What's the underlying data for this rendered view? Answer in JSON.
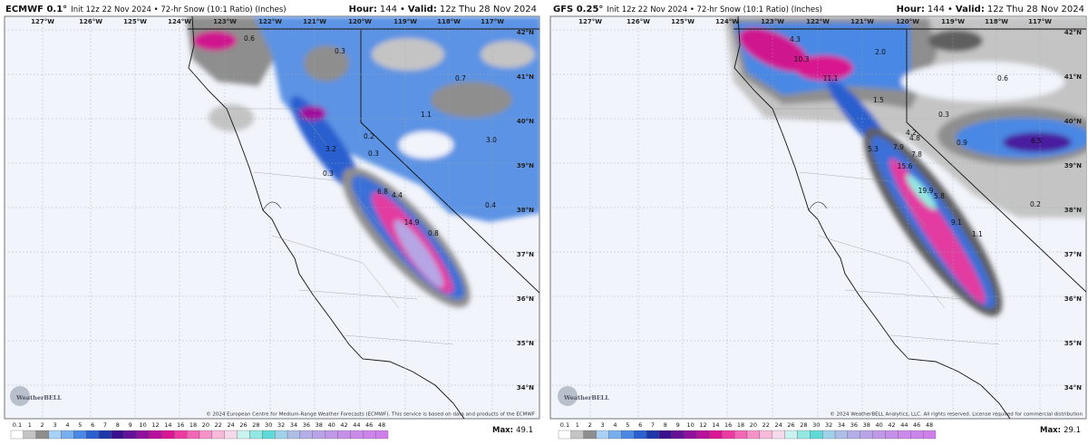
{
  "panels": [
    {
      "model": "ECMWF 0.1°",
      "init": "Init 12z 22 Nov 2024 • 72-hr Snow (10:1 Ratio) (Inches)",
      "hour_label": "Hour:",
      "hour": "144",
      "sep": "•",
      "valid_label": "Valid:",
      "valid": "12z Thu 28 Nov 2024",
      "lon_labels": [
        "127°W",
        "126°W",
        "125°W",
        "124°W",
        "123°W",
        "122°W",
        "121°W",
        "120°W",
        "119°W",
        "118°W",
        "117°W"
      ],
      "lat_labels": [
        "42°N",
        "41°N",
        "40°N",
        "39°N",
        "38°N",
        "37°N",
        "36°N",
        "35°N",
        "34°N"
      ],
      "point_labels": [
        "0.6",
        "0.3",
        "0.7",
        "1.1",
        "3.2",
        "0.2",
        "0.3",
        "0.3",
        "3.0",
        "6.8",
        "4.4",
        "14.9",
        "0.8",
        "0.4"
      ],
      "logo": "WeatherBELL",
      "copyright": "© 2024 European Centre for Medium-Range Weather Forecasts (ECMWF). This service is based on data and products of the ECMWF",
      "max_label": "Max:",
      "max": "49.1"
    },
    {
      "model": "GFS 0.25°",
      "init": "Init 12z 22 Nov 2024 • 72-hr Snow (10:1 Ratio) (Inches)",
      "hour_label": "Hour:",
      "hour": "144",
      "sep": "•",
      "valid_label": "Valid:",
      "valid": "12z Thu 28 Nov 2024",
      "lon_labels": [
        "127°W",
        "126°W",
        "125°W",
        "124°W",
        "123°W",
        "122°W",
        "121°W",
        "120°W",
        "119°W",
        "118°W",
        "117°W"
      ],
      "lat_labels": [
        "42°N",
        "41°N",
        "40°N",
        "39°N",
        "38°N",
        "37°N",
        "36°N",
        "35°N",
        "34°N"
      ],
      "point_labels": [
        "4.3",
        "2.0",
        "10.3",
        "11.1",
        "0.6",
        "1.5",
        "0.3",
        "4.2",
        "4.8",
        "0.9",
        "6.5",
        "5.3",
        "7.9",
        "7.8",
        "15.6",
        "19.9",
        "5.8",
        "9.1",
        "0.2",
        "1.1"
      ],
      "logo": "WeatherBELL",
      "copyright": "© 2024 WeatherBELL Analytics, LLC. All rights reserved. License required for commercial distribution",
      "max_label": "Max:",
      "max": "29.1"
    }
  ],
  "colorbar": {
    "ticks": [
      0.1,
      1,
      2,
      3,
      4,
      5,
      6,
      7,
      8,
      9,
      10,
      12,
      14,
      16,
      18,
      20,
      22,
      24,
      26,
      28,
      30,
      32,
      34,
      36,
      38,
      40,
      42,
      44,
      46,
      48
    ],
    "colors": [
      "#ffffff",
      "#c4c4c4",
      "#8e8e8e",
      "#a9d0f5",
      "#78aeee",
      "#4a88e4",
      "#2c5fd0",
      "#1f37a8",
      "#3a108f",
      "#651097",
      "#900f9c",
      "#b8119c",
      "#d91795",
      "#ec3aa2",
      "#f266b6",
      "#f592c8",
      "#f8b9da",
      "#f6d9ea",
      "#c9f2f0",
      "#93e8e3",
      "#5fdad6",
      "#9fd2ea",
      "#adbde8",
      "#b3aee7",
      "#b9a3e8",
      "#bf99e8",
      "#c490e9",
      "#c98aea",
      "#cd84ea",
      "#d07eea"
    ]
  }
}
